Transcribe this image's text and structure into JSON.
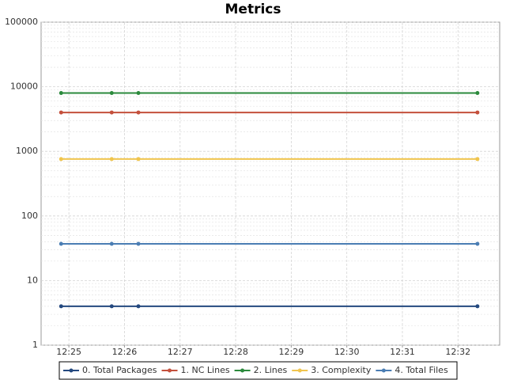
{
  "chart_data": {
    "type": "line",
    "title": "Metrics",
    "x": [
      744.86,
      745.77,
      746.25,
      752.35
    ],
    "xlim": [
      744.5,
      752.75
    ],
    "xticks": [
      {
        "value": 745,
        "label": "12:25"
      },
      {
        "value": 746,
        "label": "12:26"
      },
      {
        "value": 747,
        "label": "12:27"
      },
      {
        "value": 748,
        "label": "12:28"
      },
      {
        "value": 749,
        "label": "12:29"
      },
      {
        "value": 750,
        "label": "12:30"
      },
      {
        "value": 751,
        "label": "12:31"
      },
      {
        "value": 752,
        "label": "12:32"
      }
    ],
    "ylim": [
      1,
      100000
    ],
    "yticks": [
      1,
      10,
      100,
      1000,
      10000,
      100000
    ],
    "log_y": true,
    "grid": true,
    "series": [
      {
        "name": "0. Total Packages",
        "color": "#24497f",
        "values": [
          4,
          4,
          4,
          4
        ]
      },
      {
        "name": "1. NC Lines",
        "color": "#c4503c",
        "values": [
          4000,
          4000,
          4000,
          4000
        ]
      },
      {
        "name": "2. Lines",
        "color": "#2b8a3c",
        "values": [
          8000,
          8000,
          8000,
          8000
        ]
      },
      {
        "name": "3. Complexity",
        "color": "#f0c54e",
        "values": [
          760,
          760,
          760,
          760
        ]
      },
      {
        "name": "4. Total Files",
        "color": "#4a7db3",
        "values": [
          37,
          37,
          37,
          37
        ]
      }
    ]
  }
}
